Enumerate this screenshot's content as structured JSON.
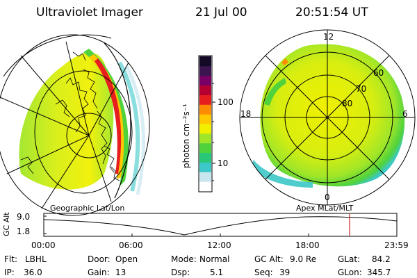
{
  "header": {
    "instrument": "Ultraviolet Imager",
    "date": "21 Jul 00",
    "time": "20:51:54 UT"
  },
  "colorbar": {
    "unit_label": "photon cm⁻²s⁻¹",
    "tick_100": "100",
    "tick_10": "10",
    "colors": [
      "#ffffff",
      "#c8e6f0",
      "#3cc8c8",
      "#28c878",
      "#50d23c",
      "#a0e628",
      "#f0f000",
      "#ffc800",
      "#ff8c00",
      "#e61e1e",
      "#b40032",
      "#780064",
      "#3c1450",
      "#140a28"
    ]
  },
  "left_map": {
    "caption": "Geographic Lat/Lon"
  },
  "right_map": {
    "caption": "Apex MLat/MLT",
    "mlt_12": "12",
    "mlt_18": "18",
    "mlt_6": "6",
    "mlt_0": "0",
    "lat_60": "60",
    "lat_70": "70",
    "lat_80": "80"
  },
  "timeline": {
    "y_axis_label": "GC Alt",
    "y_top": "9.0",
    "y_bottom": "1.8",
    "x_ticks": [
      "00:00",
      "06:00",
      "12:00",
      "18:00",
      "23:59"
    ],
    "marker_color": "#d02020"
  },
  "status": {
    "flt_label": "Flt:",
    "flt_value": "LBHL",
    "ip_label": "IP:",
    "ip_value": "36.0",
    "door_label": "Door:",
    "door_value": "Open",
    "gain_label": "Gain:",
    "gain_value": "13",
    "mode_label": "Mode:",
    "mode_value": "Normal",
    "dsp_label": "Dsp:",
    "dsp_value": "5.1",
    "gcalt_label": "GC Alt:",
    "gcalt_value": "9.0 Re",
    "seq_label": "Seq:",
    "seq_value": "39",
    "glat_label": "GLat:",
    "glat_value": "84.2",
    "glon_label": "GLon:",
    "glon_value": "345.7"
  }
}
